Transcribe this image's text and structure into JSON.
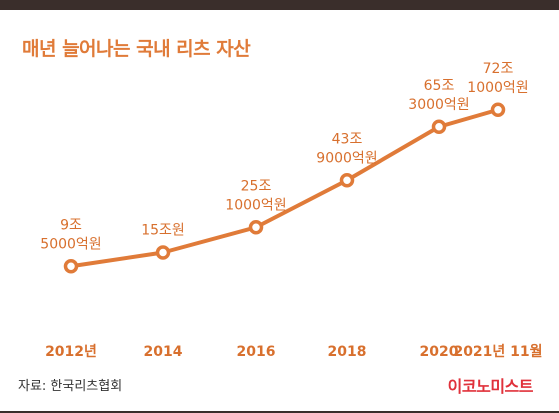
{
  "chart_data": {
    "type": "line",
    "title": "매년 늘어나는 국내 리츠 자산",
    "categories": [
      "2012년",
      "2014",
      "2016",
      "2018",
      "2020",
      "2021년 11월"
    ],
    "series": [
      {
        "values": [
          9.5,
          15,
          25.1,
          43.9,
          65.3,
          72.1
        ],
        "labels": [
          [
            "9조",
            "5000억원"
          ],
          [
            "15조원"
          ],
          [
            "25조",
            "1000억원"
          ],
          [
            "43조",
            "9000억원"
          ],
          [
            "65조",
            "3000억원"
          ],
          [
            "72조",
            "1000억원"
          ]
        ]
      }
    ],
    "ylim": [
      0,
      80
    ],
    "grid": false,
    "colors": {
      "line": "#e07b39",
      "labels": "#d8702e",
      "ticks": "#d8702e"
    }
  },
  "source": "자료: 한국리츠협회",
  "brand": "이코노미스트"
}
